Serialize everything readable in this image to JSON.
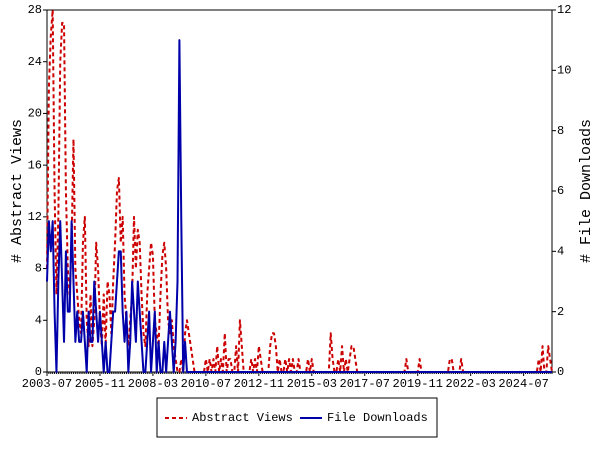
{
  "chart_data": {
    "type": "line",
    "y_label": "# Abstract Views",
    "y2_label": "# File Downloads",
    "categories": [
      "2003-07",
      null,
      null,
      null,
      null,
      null,
      null,
      null,
      null,
      null,
      null,
      null,
      null,
      null,
      null,
      null,
      null,
      null,
      null,
      null,
      null,
      null,
      null,
      null,
      null,
      null,
      null,
      null,
      "2005-11",
      null,
      null,
      null,
      null,
      null,
      null,
      null,
      null,
      null,
      null,
      null,
      null,
      null,
      null,
      null,
      null,
      null,
      null,
      null,
      null,
      null,
      null,
      null,
      null,
      null,
      null,
      null,
      "2008-03",
      null,
      null,
      null,
      null,
      null,
      null,
      null,
      null,
      null,
      null,
      null,
      null,
      null,
      null,
      null,
      null,
      null,
      null,
      null,
      null,
      null,
      null,
      null,
      null,
      null,
      null,
      null,
      "2010-07",
      null,
      null,
      null,
      null,
      null,
      null,
      null,
      null,
      null,
      null,
      null,
      null,
      null,
      null,
      null,
      null,
      null,
      null,
      null,
      null,
      null,
      null,
      null,
      null,
      null,
      null,
      null,
      "2012-11",
      null,
      null,
      null,
      null,
      null,
      null,
      null,
      null,
      null,
      null,
      null,
      null,
      null,
      null,
      null,
      null,
      null,
      null,
      null,
      null,
      null,
      null,
      null,
      null,
      null,
      null,
      null,
      "2015-03",
      null,
      null,
      null,
      null,
      null,
      null,
      null,
      null,
      null,
      null,
      null,
      null,
      null,
      null,
      null,
      null,
      null,
      null,
      null,
      null,
      null,
      null,
      null,
      null,
      null,
      null,
      null,
      "2017-07",
      null,
      null,
      null,
      null,
      null,
      null,
      null,
      null,
      null,
      null,
      null,
      null,
      null,
      null,
      null,
      null,
      null,
      null,
      null,
      null,
      null,
      null,
      null,
      null,
      null,
      null,
      null,
      "2019-11",
      null,
      null,
      null,
      null,
      null,
      null,
      null,
      null,
      null,
      null,
      null,
      null,
      null,
      null,
      null,
      null,
      null,
      null,
      null,
      null,
      null,
      null,
      null,
      null,
      null,
      null,
      null,
      "2022-03",
      null,
      null,
      null,
      null,
      null,
      null,
      null,
      null,
      null,
      null,
      null,
      null,
      null,
      null,
      null,
      null,
      null,
      null,
      null,
      null,
      null,
      null,
      null,
      null,
      null,
      null,
      null,
      "2024-07",
      null,
      null,
      null,
      null,
      null,
      null,
      null,
      null,
      null,
      null,
      null,
      null,
      null,
      null,
      null
    ],
    "series": [
      {
        "name": "Abstract Views",
        "color": "#cc0000",
        "style": "dashed",
        "values": [
          8,
          22,
          26,
          28,
          14,
          6,
          12,
          24,
          27,
          27,
          14,
          8,
          6,
          10,
          18,
          8,
          6,
          4,
          3,
          10,
          12,
          4,
          2,
          6,
          2,
          4,
          10,
          8,
          4,
          2,
          6,
          2,
          7,
          6,
          3,
          7,
          10,
          14,
          15,
          10,
          12,
          6,
          4,
          2,
          4,
          6,
          12,
          8,
          11,
          10,
          6,
          3,
          2,
          6,
          8,
          10,
          9,
          4,
          3,
          2,
          6,
          9,
          10,
          8,
          4,
          3,
          4,
          2,
          1,
          0,
          0,
          1,
          0,
          3,
          4,
          3,
          2,
          1,
          0,
          0,
          0,
          0,
          0,
          0,
          1,
          0,
          1,
          0,
          1,
          0,
          2,
          0,
          1,
          0,
          3,
          0,
          1,
          1,
          0,
          0,
          2,
          0,
          4,
          2,
          0,
          0,
          0,
          0,
          1,
          0,
          1,
          0,
          2,
          1,
          0,
          0,
          0,
          0,
          2,
          3,
          3,
          2,
          0,
          1,
          0,
          0,
          1,
          0,
          1,
          0,
          1,
          0,
          0,
          1,
          0,
          0,
          0,
          0,
          1,
          0,
          1,
          0,
          0,
          0,
          0,
          0,
          0,
          0,
          0,
          0,
          3,
          1,
          0,
          0,
          1,
          0,
          2,
          0,
          1,
          0,
          1,
          2,
          2,
          1,
          0,
          0,
          0,
          0,
          0,
          0,
          0,
          0,
          0,
          0,
          0,
          0,
          0,
          0,
          0,
          0,
          0,
          0,
          0,
          0,
          0,
          0,
          0,
          0,
          0,
          0,
          1,
          0,
          0,
          0,
          0,
          0,
          0,
          1,
          0,
          0,
          0,
          0,
          0,
          0,
          0,
          0,
          0,
          0,
          0,
          0,
          0,
          0,
          0,
          1,
          1,
          0,
          0,
          0,
          0,
          1,
          0,
          0,
          0,
          0,
          0,
          0,
          0,
          0,
          0,
          0,
          0,
          0,
          0,
          0,
          0,
          0,
          0,
          0,
          0,
          0,
          0,
          0,
          0,
          0,
          0,
          0,
          0,
          0,
          0,
          0,
          0,
          0,
          0,
          0,
          0,
          0,
          0,
          0,
          0,
          0,
          1,
          0,
          2,
          0,
          0,
          2,
          1,
          0
        ]
      },
      {
        "name": "File Downloads",
        "color": "#0000aa",
        "style": "solid",
        "axis": "y2",
        "values": [
          3,
          5,
          4,
          5,
          2,
          0,
          3,
          5,
          3,
          1,
          4,
          2,
          2,
          5,
          3,
          1,
          2,
          1,
          1,
          2,
          1,
          0,
          2,
          1,
          1,
          3,
          2,
          1,
          2,
          1,
          0,
          1,
          0,
          0,
          1,
          2,
          2,
          3,
          4,
          4,
          2,
          1,
          2,
          0,
          1,
          3,
          2,
          1,
          3,
          2,
          1,
          0,
          0,
          1,
          2,
          0,
          1,
          2,
          0,
          1,
          0,
          0,
          1,
          0,
          1,
          2,
          1,
          0,
          1,
          3,
          11,
          5,
          0,
          1,
          0,
          0,
          0,
          0,
          0,
          0,
          0,
          0,
          0,
          0,
          0,
          0,
          0,
          0,
          0,
          0,
          0,
          0,
          0,
          0,
          0,
          0,
          0,
          0,
          0,
          0,
          0,
          0,
          0,
          0,
          0,
          0,
          0,
          0,
          0,
          0,
          0,
          0,
          0,
          0,
          0,
          0,
          0,
          0,
          0,
          0,
          0,
          0,
          0,
          0,
          0,
          0,
          0,
          0,
          0,
          0,
          0,
          0,
          0,
          0,
          0,
          0,
          0,
          0,
          0,
          0,
          0,
          0,
          0,
          0,
          0,
          0,
          0,
          0,
          0,
          0,
          0,
          0,
          0,
          0,
          0,
          0,
          0,
          0,
          0,
          0,
          0,
          0,
          0,
          0,
          0,
          0,
          0,
          0,
          0,
          0,
          0,
          0,
          0,
          0,
          0,
          0,
          0,
          0,
          0,
          0,
          0,
          0,
          0,
          0,
          0,
          0,
          0,
          0,
          0,
          0,
          0,
          0,
          0,
          0,
          0,
          0,
          0,
          0,
          0,
          0,
          0,
          0,
          0,
          0,
          0,
          0,
          0,
          0,
          0,
          0,
          0,
          0,
          0,
          0,
          0,
          0,
          0,
          0,
          0,
          0,
          0,
          0,
          0,
          0,
          0,
          0,
          0,
          0,
          0,
          0,
          0,
          0,
          0,
          0,
          0,
          0,
          0,
          0,
          0,
          0,
          0,
          0,
          0,
          0,
          0,
          0,
          0,
          0,
          0,
          0,
          0,
          0,
          0,
          0,
          0,
          0,
          0,
          0,
          0,
          0,
          0,
          0,
          0,
          0,
          0,
          0,
          0,
          0
        ]
      }
    ],
    "ylim": [
      0,
      28
    ],
    "yticks": [
      0,
      4,
      8,
      12,
      16,
      20,
      24,
      28
    ],
    "y2lim": [
      0,
      12
    ],
    "y2ticks": [
      0,
      2,
      4,
      6,
      8,
      10,
      12
    ],
    "grid": false,
    "legend": "bottom"
  }
}
